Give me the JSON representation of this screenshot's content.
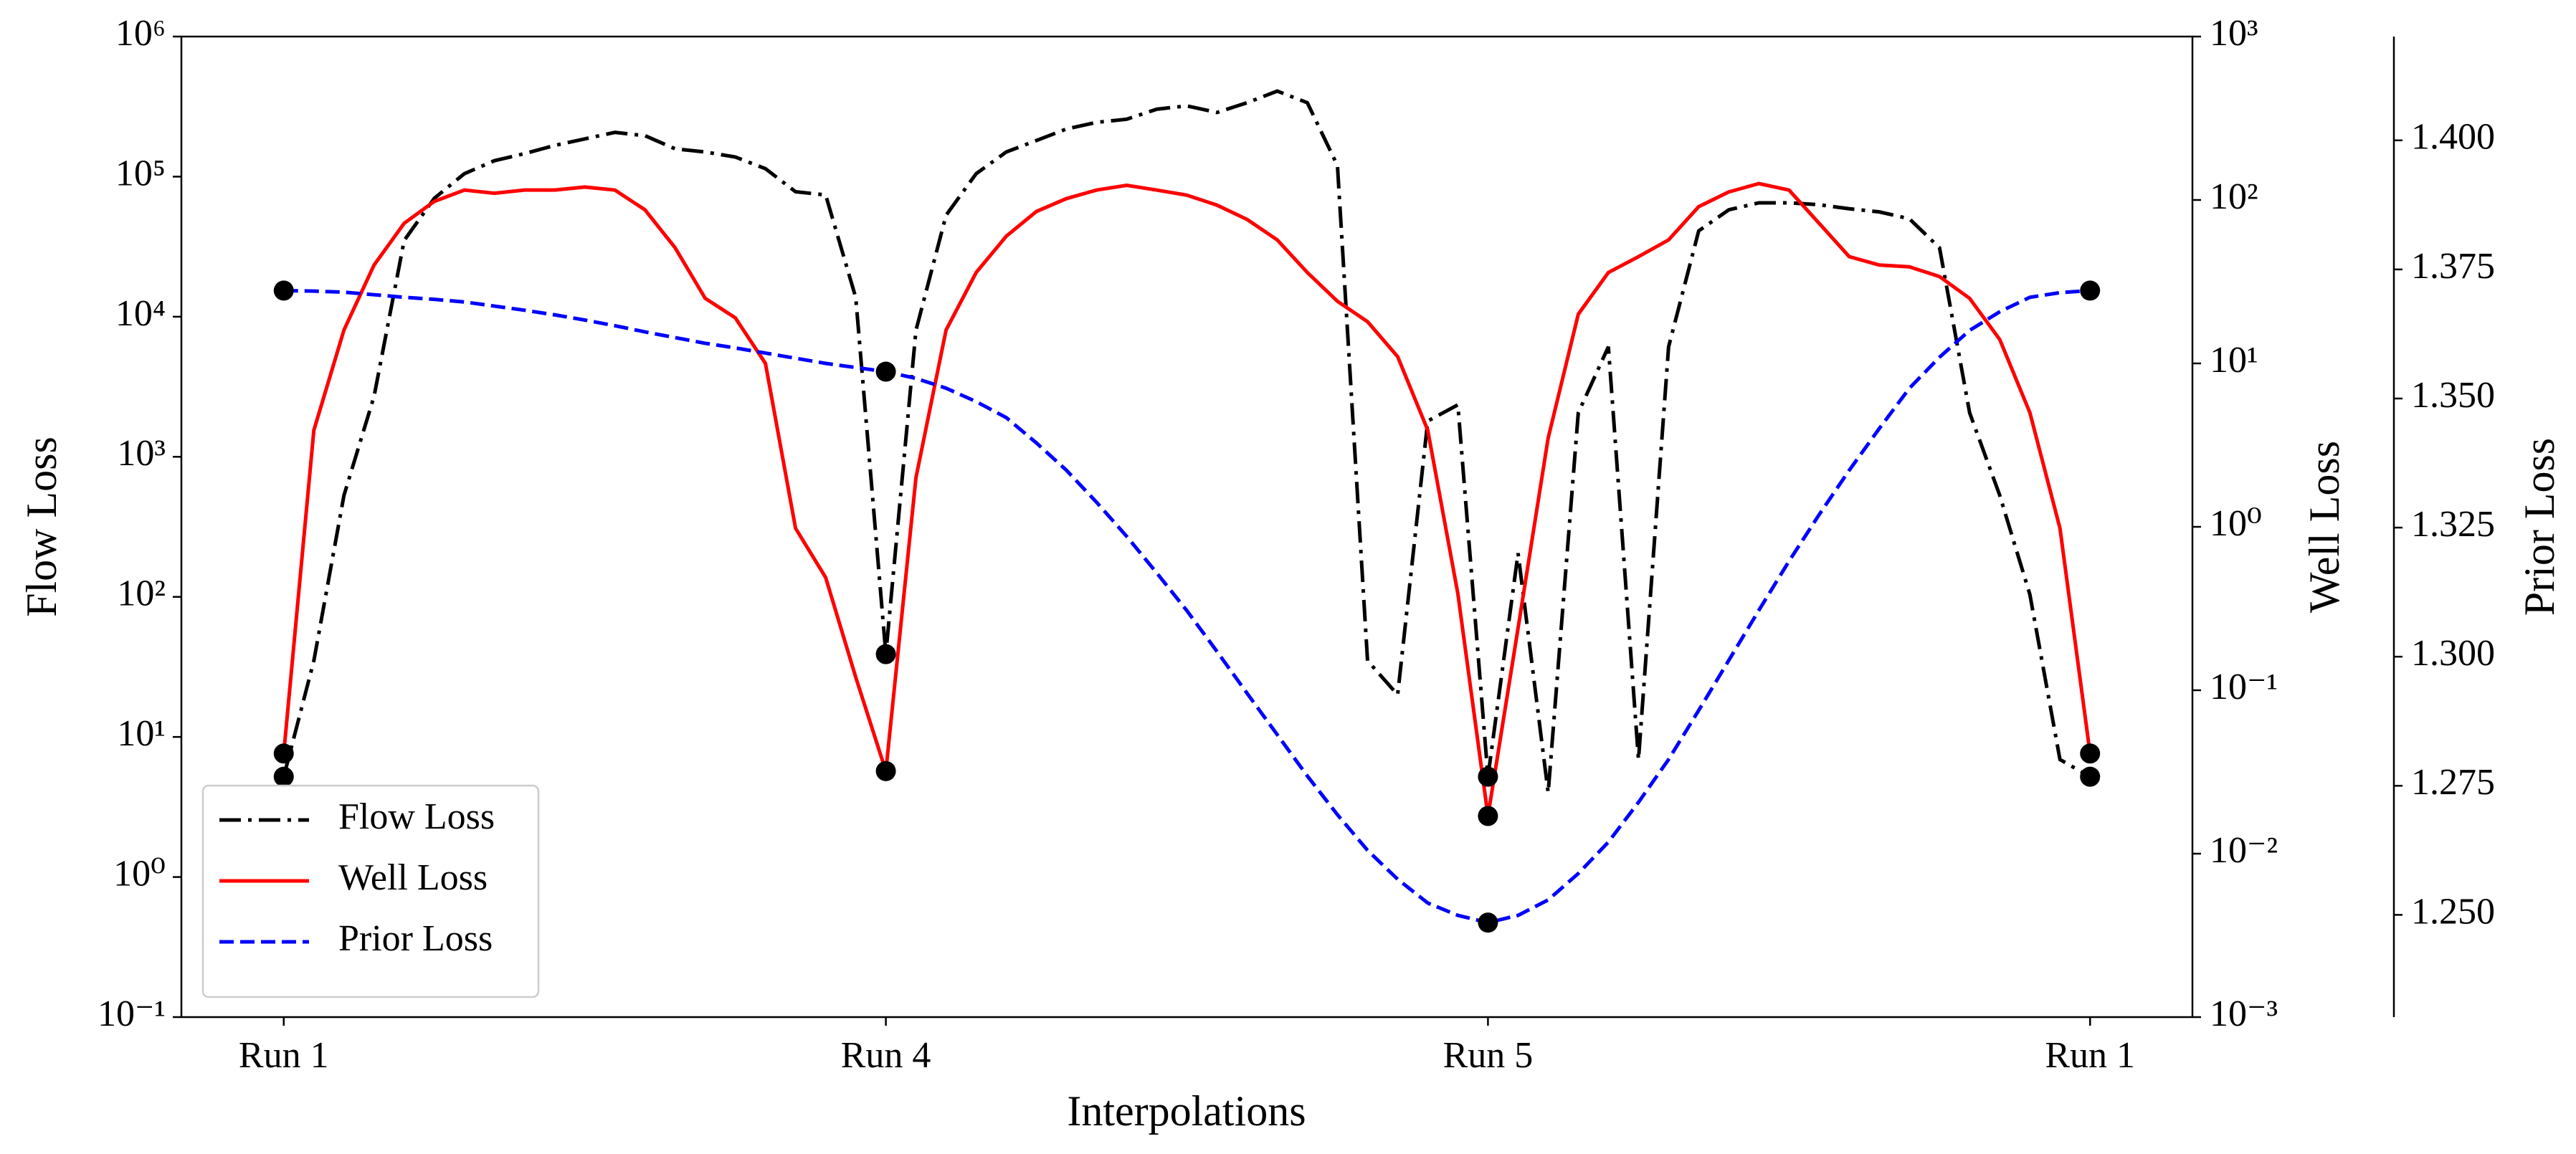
{
  "chart_data": {
    "type": "line",
    "xlabel": "Interpolations",
    "ylabel": "Flow Loss",
    "y2label": "Well Loss",
    "y3label": "Prior Loss",
    "x": [
      0,
      0.05,
      0.1,
      0.15,
      0.2,
      0.25,
      0.3,
      0.35,
      0.4,
      0.45,
      0.5,
      0.55,
      0.6,
      0.65,
      0.7,
      0.75,
      0.8,
      0.85,
      0.9,
      0.95,
      1,
      1.05,
      1.1,
      1.15,
      1.2,
      1.25,
      1.3,
      1.35,
      1.4,
      1.45,
      1.5,
      1.55,
      1.6,
      1.65,
      1.7,
      1.75,
      1.8,
      1.85,
      1.9,
      1.95,
      2,
      2.05,
      2.1,
      2.15,
      2.2,
      2.25,
      2.3,
      2.35,
      2.4,
      2.45,
      2.5,
      2.55,
      2.6,
      2.65,
      2.7,
      2.75,
      2.8,
      2.85,
      2.9,
      2.95,
      3
    ],
    "xlim": [
      -0.17,
      3.17
    ],
    "xticks": [
      {
        "value": 0,
        "label": "Run 1"
      },
      {
        "value": 1,
        "label": "Run 4"
      },
      {
        "value": 2,
        "label": "Run 5"
      },
      {
        "value": 3,
        "label": "Run 1"
      }
    ],
    "yscale": "log",
    "ylim": [
      0.1,
      1000000
    ],
    "yticks": [
      {
        "value": 0.1,
        "label": "10⁻¹"
      },
      {
        "value": 1,
        "label": "10⁰"
      },
      {
        "value": 10,
        "label": "10¹"
      },
      {
        "value": 100,
        "label": "10²"
      },
      {
        "value": 1000,
        "label": "10³"
      },
      {
        "value": 10000,
        "label": "10⁴"
      },
      {
        "value": 100000,
        "label": "10⁵"
      },
      {
        "value": 1000000,
        "label": "10⁶"
      }
    ],
    "y2scale": "log",
    "y2lim": [
      0.001,
      1000
    ],
    "y2ticks": [
      {
        "value": 0.001,
        "label": "10⁻³"
      },
      {
        "value": 0.01,
        "label": "10⁻²"
      },
      {
        "value": 0.1,
        "label": "10⁻¹"
      },
      {
        "value": 1,
        "label": "10⁰"
      },
      {
        "value": 10,
        "label": "10¹"
      },
      {
        "value": 100,
        "label": "10²"
      },
      {
        "value": 1000,
        "label": "10³"
      }
    ],
    "y3lim": [
      1.2302,
      1.4201
    ],
    "y3ticks": [
      {
        "value": 1.25,
        "label": "1.250"
      },
      {
        "value": 1.275,
        "label": "1.275"
      },
      {
        "value": 1.3,
        "label": "1.300"
      },
      {
        "value": 1.325,
        "label": "1.325"
      },
      {
        "value": 1.35,
        "label": "1.350"
      },
      {
        "value": 1.375,
        "label": "1.375"
      },
      {
        "value": 1.4,
        "label": "1.400"
      }
    ],
    "legend": "lower left",
    "marker_color": "#000000",
    "series": [
      {
        "name": "Flow Loss",
        "color": "#000000",
        "style": "dashdot",
        "axis": "y",
        "values": [
          5.2,
          35,
          530,
          2700,
          35000,
          70000,
          105000,
          130000,
          146000,
          167000,
          186000,
          207000,
          196000,
          158000,
          150000,
          138000,
          114000,
          78000,
          74000,
          13700,
          39,
          8000,
          53000,
          105000,
          150000,
          181000,
          219000,
          244000,
          257000,
          303000,
          320000,
          287000,
          337000,
          408000,
          337000,
          120000,
          35,
          20,
          1800,
          2350,
          5.2,
          205,
          4.0,
          2060,
          6100,
          6.9,
          6100,
          41000,
          58000,
          65000,
          65000,
          63000,
          59000,
          56000,
          50000,
          31000,
          2060,
          530,
          104,
          6.9,
          5.2
        ]
      },
      {
        "name": "Well Loss",
        "color": "#ff0000",
        "style": "solid",
        "axis": "y2",
        "values": [
          0.041,
          3.9,
          16,
          40,
          72,
          98,
          115,
          110,
          115,
          115,
          120,
          115,
          87,
          51,
          25,
          19,
          10,
          0.98,
          0.49,
          0.12,
          0.032,
          2.0,
          16,
          36,
          60,
          85,
          102,
          115,
          123,
          115,
          107,
          93,
          76,
          57,
          36,
          24,
          18,
          11,
          3.9,
          0.39,
          0.017,
          0.24,
          3.5,
          20,
          36,
          45,
          57,
          91,
          112,
          126,
          115,
          72,
          45,
          40,
          39,
          34,
          25,
          14,
          5.0,
          0.98,
          0.041
        ]
      },
      {
        "name": "Prior Loss",
        "color": "#0000ff",
        "style": "dashed",
        "axis": "y3",
        "values": [
          1.3709,
          1.3708,
          1.3706,
          1.3701,
          1.3696,
          1.3692,
          1.3687,
          1.3679,
          1.3671,
          1.3662,
          1.3652,
          1.3641,
          1.3629,
          1.3618,
          1.3607,
          1.3598,
          1.3588,
          1.3578,
          1.3568,
          1.356,
          1.3552,
          1.3539,
          1.352,
          1.3494,
          1.3463,
          1.3414,
          1.3361,
          1.3299,
          1.3233,
          1.3162,
          1.3089,
          1.301,
          1.2929,
          1.2849,
          1.2769,
          1.2694,
          1.2625,
          1.2569,
          1.2523,
          1.2499,
          1.2485,
          1.2499,
          1.2529,
          1.258,
          1.2641,
          1.2718,
          1.2801,
          1.2896,
          1.2993,
          1.309,
          1.3185,
          1.3275,
          1.3361,
          1.3442,
          1.352,
          1.358,
          1.3632,
          1.3668,
          1.3696,
          1.3705,
          1.3709
        ]
      }
    ]
  }
}
